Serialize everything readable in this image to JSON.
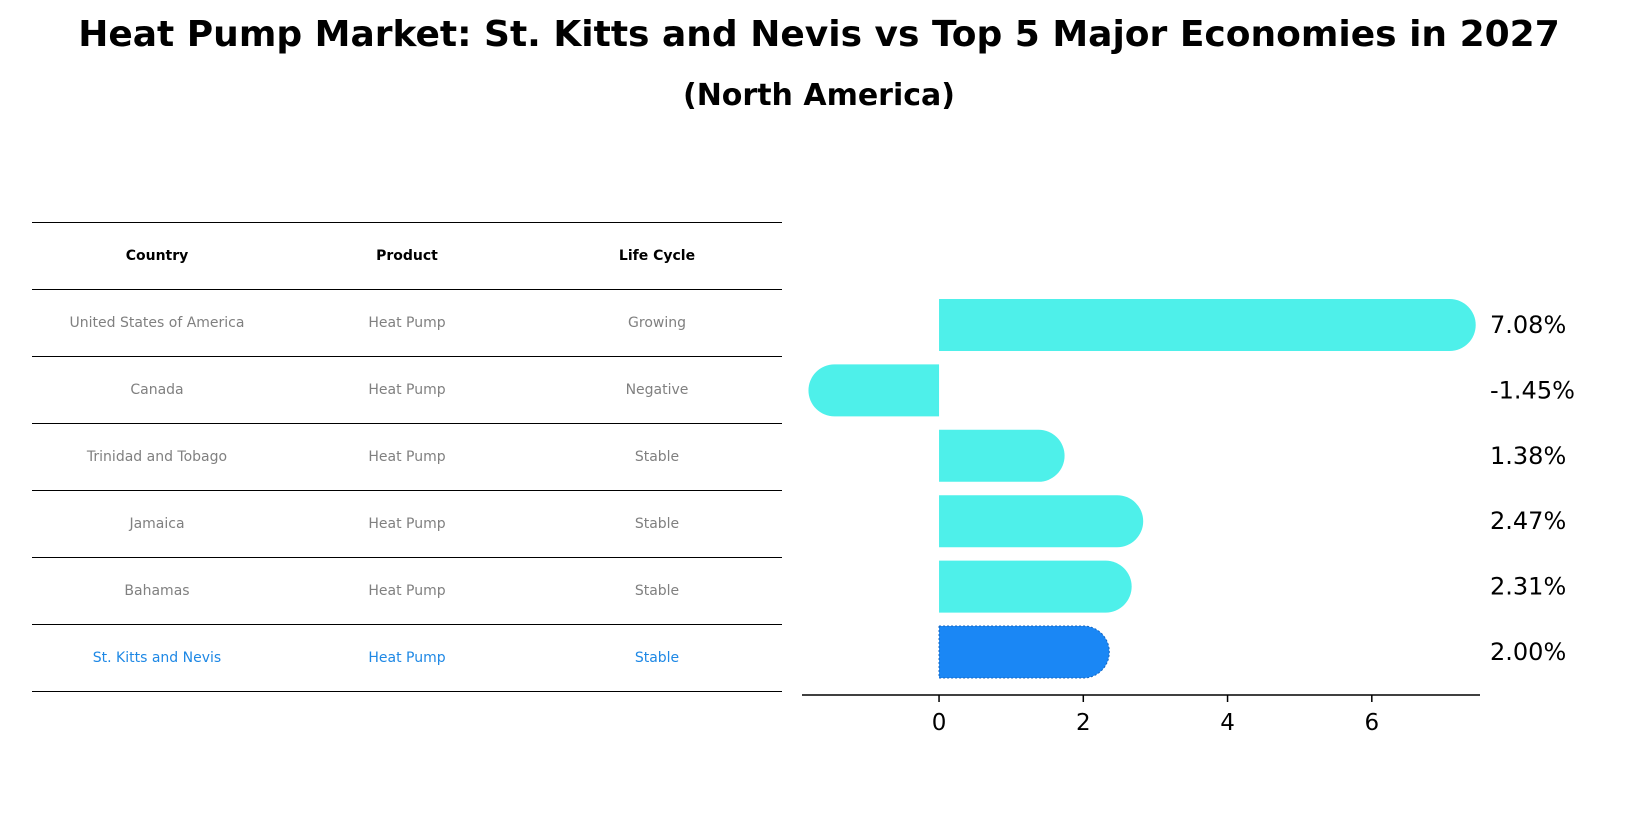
{
  "title": "Heat Pump Market: St. Kitts and Nevis vs Top 5 Major Economies in 2027",
  "subtitle": "(North America)",
  "table": {
    "headers": [
      "Country",
      "Product",
      "Life Cycle"
    ],
    "rows": [
      {
        "country": "United States of America",
        "product": "Heat Pump",
        "life_cycle": "Growing"
      },
      {
        "country": "Canada",
        "product": "Heat Pump",
        "life_cycle": "Negative"
      },
      {
        "country": "Trinidad and Tobago",
        "product": "Heat Pump",
        "life_cycle": "Stable"
      },
      {
        "country": "Jamaica",
        "product": "Heat Pump",
        "life_cycle": "Stable"
      },
      {
        "country": "Bahamas",
        "product": "Heat Pump",
        "life_cycle": "Stable"
      },
      {
        "country": "St. Kitts and Nevis",
        "product": "Heat Pump",
        "life_cycle": "Stable"
      }
    ]
  },
  "colors": {
    "bar": "#4ef0ea",
    "highlight_bar": "#1a87f5",
    "highlight_text": "#1e88e5",
    "muted_text": "#808080"
  },
  "chart_data": {
    "type": "bar",
    "orientation": "horizontal",
    "categories": [
      "United States of America",
      "Canada",
      "Trinidad and Tobago",
      "Jamaica",
      "Bahamas",
      "St. Kitts and Nevis"
    ],
    "values": [
      7.08,
      -1.45,
      1.38,
      2.47,
      2.31,
      2.0
    ],
    "value_labels": [
      "7.08%",
      "-1.45%",
      "1.38%",
      "2.47%",
      "2.31%",
      "2.00%"
    ],
    "highlight_index": 5,
    "xlim": [
      -1.9,
      7.5
    ],
    "xticks": [
      0,
      2,
      4,
      6
    ],
    "xtick_labels": [
      "0",
      "2",
      "4",
      "6"
    ],
    "xlabel": "",
    "ylabel": ""
  }
}
